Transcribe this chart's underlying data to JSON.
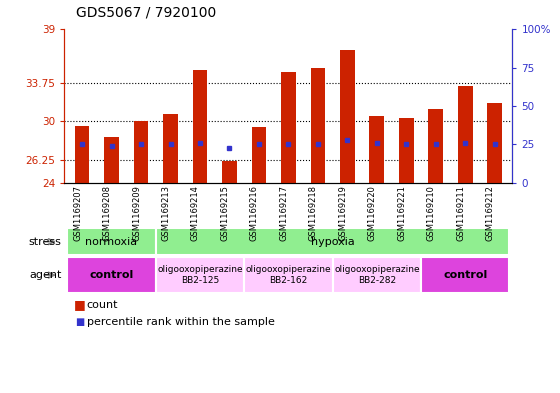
{
  "title": "GDS5067 / 7920100",
  "samples": [
    "GSM1169207",
    "GSM1169208",
    "GSM1169209",
    "GSM1169213",
    "GSM1169214",
    "GSM1169215",
    "GSM1169216",
    "GSM1169217",
    "GSM1169218",
    "GSM1169219",
    "GSM1169220",
    "GSM1169221",
    "GSM1169210",
    "GSM1169211",
    "GSM1169212"
  ],
  "bar_values": [
    29.6,
    28.5,
    30.0,
    30.7,
    35.0,
    26.1,
    29.5,
    34.8,
    35.2,
    37.0,
    30.5,
    30.3,
    31.2,
    33.5,
    31.8
  ],
  "percentile_values": [
    27.8,
    27.6,
    27.8,
    27.8,
    27.9,
    27.4,
    27.8,
    27.8,
    27.8,
    28.2,
    27.9,
    27.8,
    27.8,
    27.9,
    27.8
  ],
  "ymin": 24,
  "ymax": 39,
  "yticks": [
    24,
    26.25,
    30,
    33.75,
    39
  ],
  "ytick_labels_left": [
    "24",
    "26.25",
    "30",
    "33.75",
    "39"
  ],
  "ytick_labels_right": [
    "0",
    "25",
    "50",
    "75",
    "100%"
  ],
  "right_yticks": [
    24,
    27.75,
    31.5,
    35.25,
    39
  ],
  "bar_color": "#CC2200",
  "percentile_color": "#3333CC",
  "bar_width": 0.5,
  "dotted_lines": [
    26.25,
    30.0,
    33.75
  ],
  "left_axis_color": "#CC2200",
  "right_axis_color": "#3333CC",
  "stress_spans": [
    {
      "label": "normoxia",
      "xstart": 0,
      "xend": 3,
      "color": "#90EE90"
    },
    {
      "label": "hypoxia",
      "xstart": 3,
      "xend": 15,
      "color": "#90EE90"
    }
  ],
  "agent_spans": [
    {
      "label": "control",
      "xstart": 0,
      "xend": 3,
      "color": "#DD44DD"
    },
    {
      "label": "oligooxopiperazine\nBB2-125",
      "xstart": 3,
      "xend": 6,
      "color": "#FFCCFF"
    },
    {
      "label": "oligooxopiperazine\nBB2-162",
      "xstart": 6,
      "xend": 9,
      "color": "#FFCCFF"
    },
    {
      "label": "oligooxopiperazine\nBB2-282",
      "xstart": 9,
      "xend": 12,
      "color": "#FFCCFF"
    },
    {
      "label": "control",
      "xstart": 12,
      "xend": 15,
      "color": "#DD44DD"
    }
  ],
  "title_fontsize": 10,
  "tick_fontsize": 7.5,
  "sample_fontsize": 6,
  "row_label_fontsize": 8,
  "legend_fontsize": 8
}
